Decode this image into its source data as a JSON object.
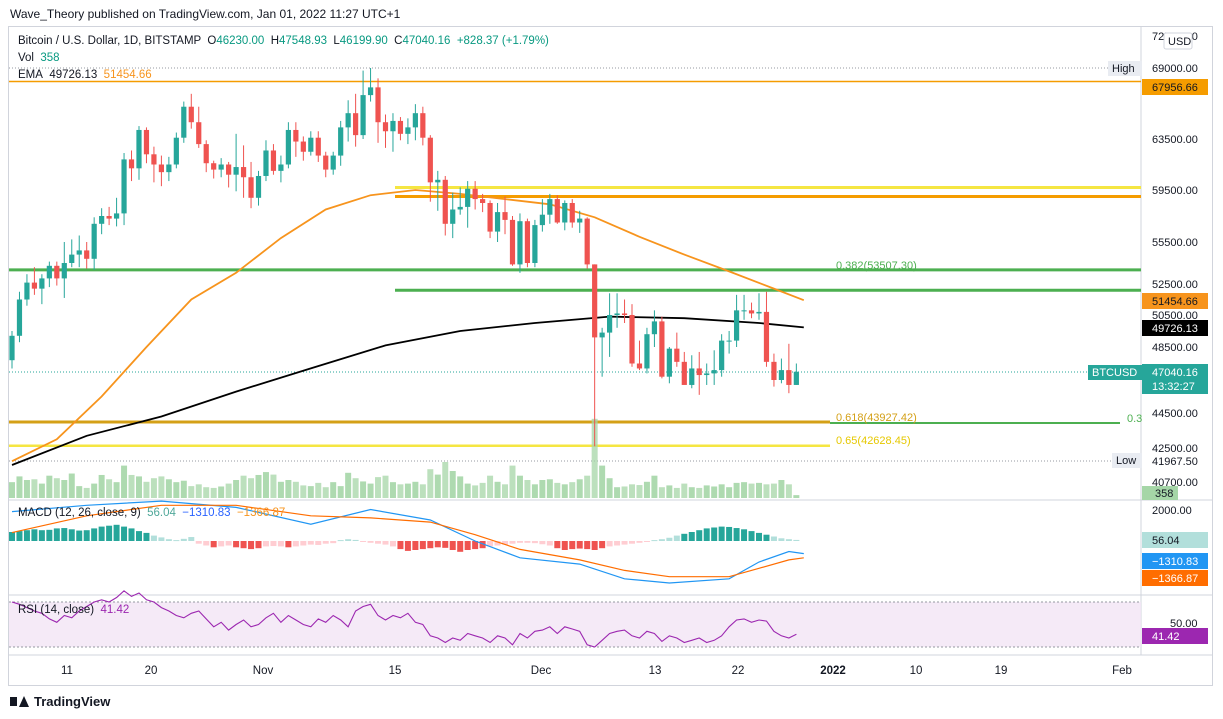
{
  "publisher_line": "Wave_Theory published on TradingView.com, Jan 01, 2022 11:27 UTC+1",
  "legend": {
    "symbol": "Bitcoin / U.S. Dollar, 1D, BITSTAMP",
    "o_label": "O",
    "o_value": "46230.00",
    "h_label": "H",
    "h_value": "47548.93",
    "l_label": "L",
    "l_value": "46199.90",
    "c_label": "C",
    "c_value": "47040.16",
    "change": "+828.37 (+1.79%)",
    "vol_label": "Vol",
    "vol_value": "358",
    "ema_label": "EMA",
    "ema_value1": "49726.13",
    "ema_value2": "51454.66"
  },
  "macd_legend": {
    "label": "MACD (12, 26, close, 9)",
    "v1": "56.04",
    "v2": "−1310.83",
    "v3": "−1366.87"
  },
  "rsi_legend": {
    "label": "RSI (14, close)",
    "value": "41.42"
  },
  "footer": {
    "brand": "TradingView"
  },
  "colors": {
    "up": "#26a69a",
    "down": "#ef5350",
    "ema_short": "#f7941d",
    "ema_long": "#000000",
    "support_green": "#4caf50",
    "resistance_orange": "#f59c00",
    "fib_yellow": "#f5e642",
    "rsi": "#9c27b0",
    "macd": "#2196f3",
    "signal": "#ff6d00"
  },
  "chart_data": {
    "type": "candlestick",
    "title": "Bitcoin / U.S. Dollar, 1D, BITSTAMP",
    "currency": "USD",
    "price_axis_ticks": [
      "72500.00",
      "69000.00",
      "63500.00",
      "59500.00",
      "55500.00",
      "52500.00",
      "50500.00",
      "48500.00",
      "44500.00",
      "42500.00",
      "40700.00"
    ],
    "time_axis_ticks": [
      "11",
      "20",
      "Nov",
      "15",
      "Dec",
      "13",
      "22",
      "2022",
      "10",
      "19",
      "Feb"
    ],
    "candles_ohlc": [
      [
        47700,
        49500,
        47200,
        49200
      ],
      [
        49200,
        52000,
        48800,
        51500
      ],
      [
        51500,
        53200,
        51100,
        52600
      ],
      [
        52600,
        53700,
        51800,
        52200
      ],
      [
        52200,
        53200,
        51200,
        52900
      ],
      [
        52900,
        54100,
        52300,
        53800
      ],
      [
        53800,
        54100,
        52400,
        52900
      ],
      [
        52900,
        55500,
        51600,
        54000
      ],
      [
        54000,
        55700,
        53700,
        54600
      ],
      [
        54600,
        56000,
        53700,
        54900
      ],
      [
        54900,
        55500,
        53600,
        54300
      ],
      [
        54300,
        57400,
        53500,
        56900
      ],
      [
        56900,
        58100,
        56100,
        57500
      ],
      [
        57500,
        58200,
        56800,
        57300
      ],
      [
        57300,
        58900,
        56700,
        57700
      ],
      [
        57700,
        62400,
        56800,
        61900
      ],
      [
        61900,
        62600,
        60200,
        61200
      ],
      [
        61200,
        64500,
        60300,
        64200
      ],
      [
        64200,
        64400,
        61600,
        62300
      ],
      [
        62300,
        62900,
        60100,
        61500
      ],
      [
        61500,
        62200,
        59800,
        60900
      ],
      [
        60900,
        62100,
        60200,
        61500
      ],
      [
        61500,
        64000,
        61200,
        63600
      ],
      [
        63600,
        66400,
        63200,
        66000
      ],
      [
        66000,
        67000,
        64300,
        64800
      ],
      [
        64800,
        66000,
        62800,
        63100
      ],
      [
        63100,
        63400,
        60900,
        61600
      ],
      [
        61600,
        61800,
        60400,
        61100
      ],
      [
        61100,
        62000,
        60500,
        61500
      ],
      [
        61500,
        61700,
        59700,
        60700
      ],
      [
        60700,
        63900,
        59400,
        61300
      ],
      [
        61300,
        63000,
        58900,
        60500
      ],
      [
        60500,
        61700,
        58100,
        58900
      ],
      [
        58900,
        61000,
        58300,
        60600
      ],
      [
        60600,
        63400,
        60200,
        62600
      ],
      [
        62600,
        63100,
        60700,
        61000
      ],
      [
        61000,
        62200,
        60100,
        61500
      ],
      [
        61500,
        64800,
        61200,
        64200
      ],
      [
        64200,
        64800,
        62100,
        63300
      ],
      [
        63300,
        63700,
        61800,
        62500
      ],
      [
        62500,
        64100,
        62200,
        63600
      ],
      [
        63600,
        64100,
        61700,
        62200
      ],
      [
        62200,
        62500,
        60500,
        61100
      ],
      [
        61100,
        62500,
        60700,
        62200
      ],
      [
        62200,
        64900,
        61400,
        64400
      ],
      [
        64400,
        66500,
        63300,
        65500
      ],
      [
        65500,
        67000,
        62900,
        63800
      ],
      [
        63800,
        68800,
        63500,
        66900
      ],
      [
        66900,
        69000,
        66400,
        67500
      ],
      [
        67500,
        68200,
        63200,
        64800
      ],
      [
        64800,
        65400,
        62800,
        64100
      ],
      [
        64100,
        65500,
        62500,
        64900
      ],
      [
        64900,
        65200,
        63400,
        63900
      ],
      [
        63900,
        65100,
        63100,
        64400
      ],
      [
        64400,
        66200,
        63400,
        65500
      ],
      [
        65500,
        66000,
        63000,
        63600
      ],
      [
        63600,
        63800,
        58600,
        60100
      ],
      [
        60100,
        61000,
        57900,
        60300
      ],
      [
        60300,
        60600,
        56000,
        56900
      ],
      [
        56900,
        59300,
        55800,
        58000
      ],
      [
        58000,
        59700,
        57600,
        58200
      ],
      [
        58200,
        60200,
        56600,
        59600
      ],
      [
        59600,
        60200,
        58000,
        58800
      ],
      [
        58800,
        59200,
        57800,
        58500
      ],
      [
        58500,
        58700,
        55800,
        56300
      ],
      [
        56300,
        58500,
        55500,
        57800
      ],
      [
        57800,
        59000,
        56100,
        57200
      ],
      [
        57200,
        57500,
        53800,
        53900
      ],
      [
        53900,
        57700,
        53300,
        57100
      ],
      [
        57100,
        57300,
        53700,
        54000
      ],
      [
        54000,
        57200,
        53700,
        56800
      ],
      [
        56800,
        58800,
        56300,
        57600
      ],
      [
        57600,
        59200,
        56900,
        58800
      ],
      [
        58800,
        59100,
        56900,
        57000
      ],
      [
        57000,
        58700,
        56400,
        58500
      ],
      [
        58500,
        58800,
        56600,
        57000
      ],
      [
        57000,
        57900,
        56200,
        57300
      ],
      [
        57300,
        57400,
        53600,
        53900
      ],
      [
        53900,
        53900,
        42600,
        49100
      ],
      [
        49100,
        49700,
        46700,
        49400
      ],
      [
        49400,
        51900,
        47900,
        50500
      ],
      [
        50500,
        51900,
        49700,
        50600
      ],
      [
        50600,
        51500,
        50000,
        50500
      ],
      [
        50500,
        51200,
        47300,
        47500
      ],
      [
        47500,
        48900,
        47100,
        47200
      ],
      [
        47200,
        49700,
        46900,
        49300
      ],
      [
        49300,
        50800,
        48500,
        50100
      ],
      [
        50100,
        50400,
        46600,
        46700
      ],
      [
        46700,
        48500,
        46300,
        48400
      ],
      [
        48400,
        49400,
        47300,
        47600
      ],
      [
        47600,
        48200,
        46300,
        46200
      ],
      [
        46200,
        48000,
        46000,
        47200
      ],
      [
        47200,
        48200,
        45600,
        46800
      ],
      [
        46800,
        47500,
        46200,
        46900
      ],
      [
        46900,
        48300,
        46200,
        47100
      ],
      [
        47100,
        49300,
        46700,
        48900
      ],
      [
        48900,
        49500,
        48100,
        48900
      ],
      [
        48900,
        51800,
        48500,
        50800
      ],
      [
        50800,
        51800,
        50200,
        50800
      ],
      [
        50800,
        51300,
        50300,
        50600
      ],
      [
        50600,
        51900,
        50200,
        50700
      ],
      [
        50700,
        52000,
        47300,
        47600
      ],
      [
        47600,
        48100,
        46100,
        46500
      ],
      [
        46500,
        47800,
        46300,
        47100
      ],
      [
        47100,
        48700,
        45700,
        46200
      ],
      [
        46200,
        47500,
        46200,
        47000
      ]
    ],
    "volume_relative": [
      0.44,
      0.6,
      0.5,
      0.52,
      0.4,
      0.62,
      0.55,
      0.5,
      0.68,
      0.33,
      0.28,
      0.4,
      0.64,
      0.52,
      0.44,
      0.9,
      0.64,
      0.6,
      0.45,
      0.55,
      0.6,
      0.52,
      0.44,
      0.48,
      0.33,
      0.38,
      0.3,
      0.28,
      0.32,
      0.4,
      0.5,
      0.62,
      0.55,
      0.64,
      0.72,
      0.65,
      0.45,
      0.5,
      0.45,
      0.35,
      0.33,
      0.42,
      0.3,
      0.44,
      0.33,
      0.7,
      0.55,
      0.46,
      0.4,
      0.58,
      0.62,
      0.44,
      0.38,
      0.4,
      0.45,
      0.38,
      0.8,
      0.65,
      1.0,
      0.75,
      0.6,
      0.4,
      0.35,
      0.42,
      0.62,
      0.45,
      0.38,
      0.9,
      0.62,
      0.5,
      0.38,
      0.5,
      0.52,
      0.42,
      0.38,
      0.44,
      0.52,
      0.62,
      2.2,
      0.9,
      0.55,
      0.3,
      0.32,
      0.38,
      0.36,
      0.45,
      0.62,
      0.3,
      0.35,
      0.28,
      0.4,
      0.3,
      0.28,
      0.35,
      0.32,
      0.38,
      0.3,
      0.42,
      0.44,
      0.4,
      0.42,
      0.38,
      0.4,
      0.5,
      0.38,
      0.08
    ],
    "ema_short": {
      "label_value": "51454.66",
      "points": [
        [
          0,
          41800
        ],
        [
          6,
          43000
        ],
        [
          12,
          45500
        ],
        [
          18,
          48500
        ],
        [
          24,
          51500
        ],
        [
          30,
          53300
        ],
        [
          36,
          55800
        ],
        [
          42,
          58000
        ],
        [
          48,
          59100
        ],
        [
          54,
          59500
        ],
        [
          60,
          59200
        ],
        [
          66,
          58800
        ],
        [
          72,
          58400
        ],
        [
          78,
          57400
        ],
        [
          84,
          55900
        ],
        [
          90,
          54600
        ],
        [
          96,
          53400
        ],
        [
          102,
          52200
        ],
        [
          106,
          51454
        ]
      ]
    },
    "ema_long": {
      "label_value": "49726.13",
      "points": [
        [
          0,
          41600
        ],
        [
          10,
          43200
        ],
        [
          20,
          44300
        ],
        [
          30,
          45800
        ],
        [
          40,
          47200
        ],
        [
          50,
          48600
        ],
        [
          60,
          49500
        ],
        [
          70,
          50000
        ],
        [
          80,
          50400
        ],
        [
          90,
          50300
        ],
        [
          100,
          50000
        ],
        [
          106,
          49726
        ]
      ]
    },
    "horizontal_levels": [
      {
        "price": 67956.66,
        "label": "67956.66",
        "type": "resistance"
      },
      {
        "price": 59000,
        "type": "resistance"
      },
      {
        "price": 59700,
        "type": "fib"
      },
      {
        "price": 53507.3,
        "label": "0.382(53507.30)",
        "type": "support"
      },
      {
        "price": 52100,
        "type": "support"
      },
      {
        "price": 43927.42,
        "label": "0.618(43927.42)",
        "type": "fib"
      },
      {
        "price": 42628.45,
        "label": "0.65(42628.45)",
        "type": "fib"
      }
    ],
    "price_labels": {
      "high_label": "High",
      "high_value": "69000.00",
      "low_label": "Low",
      "low_value": "41967.50",
      "last_symbol": "BTCUSD",
      "last_price": "47040.16",
      "countdown": "13:32:27",
      "vol_value": "358",
      "right_fib_label": "0.3"
    },
    "macd": {
      "axis_ticks": [
        "2000.00"
      ],
      "histogram_relative": [
        0.5,
        0.55,
        0.6,
        0.65,
        0.6,
        0.62,
        0.7,
        0.72,
        0.65,
        0.58,
        0.6,
        0.7,
        0.8,
        0.85,
        0.9,
        0.8,
        0.7,
        0.55,
        0.45,
        0.3,
        0.2,
        0.1,
        0.05,
        0.12,
        0.22,
        -0.15,
        -0.25,
        -0.35,
        -0.3,
        -0.25,
        -0.35,
        -0.4,
        -0.45,
        -0.4,
        -0.3,
        -0.28,
        -0.3,
        -0.35,
        -0.3,
        -0.25,
        -0.2,
        -0.22,
        -0.15,
        -0.12,
        0.05,
        0.1,
        0.06,
        -0.05,
        -0.1,
        -0.15,
        -0.2,
        -0.3,
        -0.45,
        -0.55,
        -0.5,
        -0.45,
        -0.4,
        -0.35,
        -0.38,
        -0.5,
        -0.6,
        -0.5,
        -0.45,
        -0.4,
        -0.3,
        -0.25,
        -0.2,
        -0.15,
        -0.1,
        -0.1,
        -0.12,
        -0.18,
        -0.25,
        -0.4,
        -0.5,
        -0.45,
        -0.42,
        -0.45,
        -0.5,
        -0.4,
        -0.3,
        -0.25,
        -0.2,
        -0.15,
        -0.1,
        -0.05,
        0.05,
        0.1,
        0.18,
        0.3,
        0.4,
        0.5,
        0.6,
        0.7,
        0.75,
        0.8,
        0.78,
        0.72,
        0.65,
        0.55,
        0.45,
        0.35,
        0.25,
        0.15,
        0.1,
        0.06
      ],
      "macd_line": [
        [
          0,
          0.7
        ],
        [
          10,
          0.85
        ],
        [
          20,
          0.95
        ],
        [
          30,
          0.8
        ],
        [
          40,
          0.4
        ],
        [
          48,
          0.75
        ],
        [
          56,
          0.5
        ],
        [
          62,
          0.0
        ],
        [
          68,
          -0.4
        ],
        [
          76,
          -0.55
        ],
        [
          82,
          -0.9
        ],
        [
          88,
          -1.0
        ],
        [
          96,
          -0.9
        ],
        [
          100,
          -0.5
        ],
        [
          104,
          -0.25
        ],
        [
          106,
          -0.3
        ]
      ],
      "signal_line": [
        [
          0,
          0.2
        ],
        [
          10,
          0.6
        ],
        [
          20,
          0.85
        ],
        [
          30,
          0.85
        ],
        [
          40,
          0.6
        ],
        [
          48,
          0.55
        ],
        [
          56,
          0.45
        ],
        [
          62,
          0.15
        ],
        [
          68,
          -0.2
        ],
        [
          76,
          -0.45
        ],
        [
          82,
          -0.7
        ],
        [
          88,
          -0.85
        ],
        [
          96,
          -0.85
        ],
        [
          100,
          -0.65
        ],
        [
          104,
          -0.45
        ],
        [
          106,
          -0.4
        ]
      ],
      "value_macd": "56.04",
      "value_line": "−1310.83",
      "value_signal": "−1366.87"
    },
    "rsi": {
      "axis_ticks": [
        "50.00"
      ],
      "value": "41.42",
      "series": [
        70,
        68,
        65,
        62,
        60,
        55,
        52,
        58,
        56,
        62,
        66,
        70,
        72,
        70,
        74,
        80,
        75,
        78,
        72,
        70,
        65,
        62,
        58,
        56,
        60,
        62,
        55,
        48,
        52,
        45,
        50,
        54,
        48,
        50,
        56,
        60,
        52,
        58,
        54,
        50,
        48,
        55,
        52,
        58,
        54,
        48,
        62,
        66,
        68,
        58,
        54,
        58,
        56,
        60,
        52,
        50,
        40,
        38,
        34,
        38,
        36,
        42,
        40,
        38,
        34,
        40,
        38,
        32,
        42,
        38,
        44,
        45,
        48,
        42,
        48,
        46,
        44,
        32,
        30,
        36,
        42,
        44,
        45,
        40,
        38,
        44,
        42,
        35,
        40,
        38,
        34,
        36,
        38,
        34,
        36,
        40,
        48,
        54,
        55,
        52,
        54,
        53,
        44,
        40,
        38,
        41.42
      ]
    }
  }
}
